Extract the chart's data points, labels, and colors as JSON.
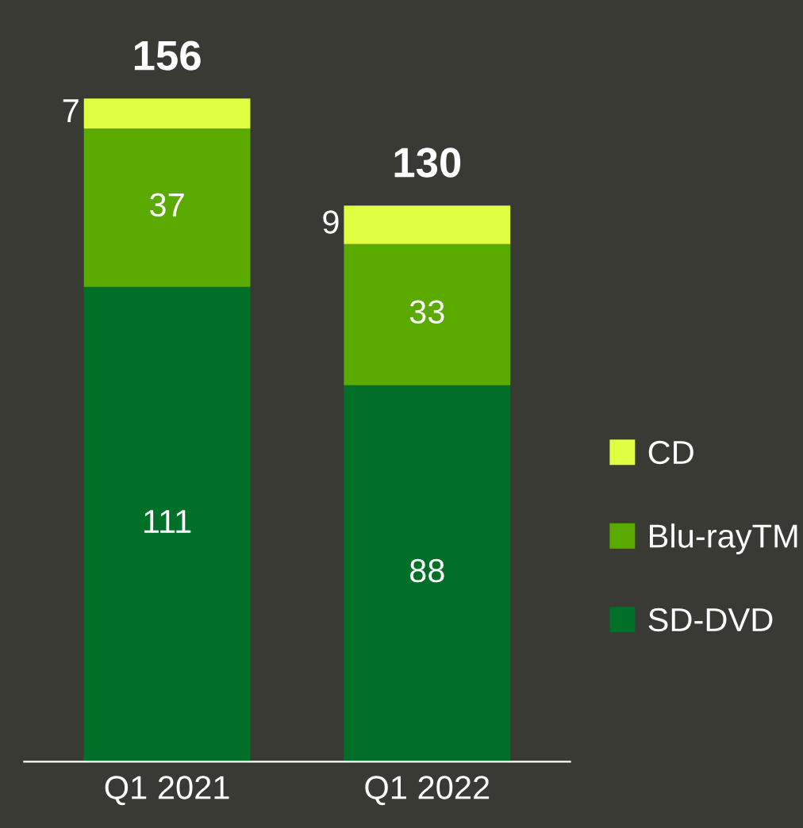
{
  "chart_data": {
    "type": "bar",
    "stacked": true,
    "categories": [
      "Q1 2021",
      "Q1 2022"
    ],
    "series": [
      {
        "name": "SD-DVD",
        "color": "#007028",
        "values": [
          111,
          88
        ]
      },
      {
        "name": "Blu-rayTM",
        "color": "#5aaa00",
        "values": [
          37,
          33
        ]
      },
      {
        "name": "CD",
        "color": "#e0ff40",
        "values": [
          7,
          9
        ]
      }
    ],
    "data_labels": true,
    "totals": [
      "156",
      "130"
    ],
    "legend": "right",
    "grid": false
  }
}
